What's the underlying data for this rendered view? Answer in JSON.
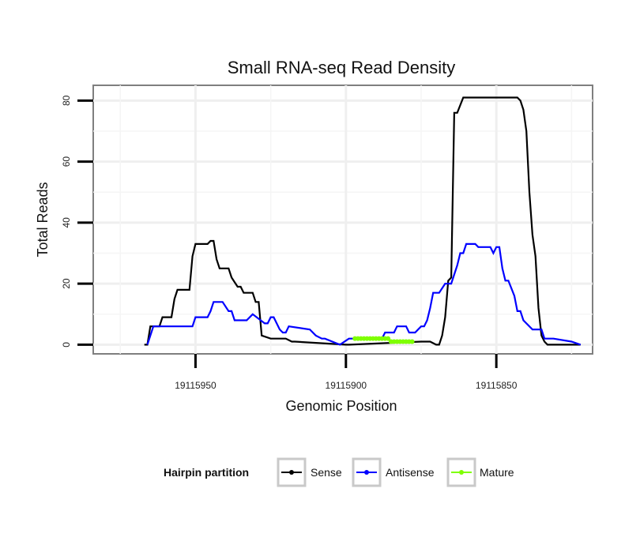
{
  "chart_data": {
    "type": "line",
    "title": "Small RNA-seq Read Density",
    "xlabel": "Genomic Position",
    "ylabel": "Total Reads",
    "xlim": [
      19115984,
      19115818
    ],
    "ylim": [
      -3,
      85
    ],
    "x_reversed": true,
    "grid": true,
    "legend_position": "bottom",
    "legend_title": "Hairpin partition",
    "x_ticks": [
      19115950,
      19115900,
      19115850
    ],
    "x_tick_labels": [
      "19115950",
      "19115900",
      "19115850"
    ],
    "y_ticks": [
      0,
      20,
      40,
      60,
      80
    ],
    "y_tick_labels": [
      "0",
      "20",
      "40",
      "60",
      "80"
    ],
    "series": [
      {
        "name": "Sense",
        "color": "#000000",
        "x": [
          19115967,
          19115966,
          19115965,
          19115964,
          19115962,
          19115961,
          19115959,
          19115958,
          19115957,
          19115956,
          19115955,
          19115952,
          19115951,
          19115950,
          19115949,
          19115948,
          19115946,
          19115945,
          19115944,
          19115943,
          19115942,
          19115941,
          19115940,
          19115939,
          19115938,
          19115936,
          19115935,
          19115934,
          19115933,
          19115932,
          19115931,
          19115930,
          19115929,
          19115928,
          19115925,
          19115924,
          19115920,
          19115918,
          19115917,
          19115900,
          19115899,
          19115875,
          19115872,
          19115870,
          19115869,
          19115868,
          19115867,
          19115866,
          19115865,
          19115864,
          19115863,
          19115861,
          19115860,
          19115859,
          19115858,
          19115857,
          19115856,
          19115855,
          19115853,
          19115851,
          19115849,
          19115847,
          19115845,
          19115843,
          19115842,
          19115841,
          19115840,
          19115839,
          19115838,
          19115837,
          19115836,
          19115835,
          19115834,
          19115833,
          19115831,
          19115830,
          19115827,
          19115822
        ],
        "y": [
          0,
          0,
          6,
          6,
          6,
          9,
          9,
          9,
          15,
          18,
          18,
          18,
          29,
          33,
          33,
          33,
          33,
          34,
          34,
          28,
          25,
          25,
          25,
          25,
          22,
          19,
          19,
          17,
          17,
          17,
          17,
          14,
          14,
          3,
          2,
          2,
          2,
          1,
          1,
          0,
          0,
          1,
          1,
          0,
          0,
          3,
          9,
          21,
          22,
          76,
          76,
          81,
          81,
          81,
          81,
          81,
          81,
          81,
          81,
          81,
          81,
          81,
          81,
          81,
          80,
          77,
          70,
          50,
          36,
          29,
          12,
          3,
          1,
          0,
          0,
          0,
          0,
          0
        ]
      },
      {
        "name": "Antisense",
        "color": "#0000ff",
        "x": [
          19115966,
          19115964,
          19115956,
          19115955,
          19115951,
          19115950,
          19115949,
          19115948,
          19115946,
          19115945,
          19115944,
          19115941,
          19115939,
          19115938,
          19115937,
          19115936,
          19115935,
          19115934,
          19115933,
          19115931,
          19115927,
          19115926,
          19115925,
          19115924,
          19115923,
          19115922,
          19115921,
          19115920,
          19115919,
          19115912,
          19115910,
          19115908,
          19115907,
          19115902,
          19115899,
          19115888,
          19115887,
          19115884,
          19115883,
          19115880,
          19115879,
          19115877,
          19115875,
          19115874,
          19115873,
          19115872,
          19115871,
          19115870,
          19115869,
          19115867,
          19115865,
          19115864,
          19115863,
          19115862,
          19115861,
          19115860,
          19115857,
          19115856,
          19115855,
          19115852,
          19115851,
          19115850,
          19115849,
          19115848,
          19115847,
          19115846,
          19115844,
          19115843,
          19115842,
          19115841,
          19115838,
          19115835,
          19115834,
          19115833,
          19115831,
          19115825,
          19115822
        ],
        "y": [
          0,
          6,
          6,
          6,
          6,
          9,
          9,
          9,
          9,
          11,
          14,
          14,
          11,
          11,
          8,
          8,
          8,
          8,
          8,
          10,
          7,
          7,
          9,
          9,
          7,
          5,
          4,
          4,
          6,
          5,
          3,
          2,
          2,
          0,
          2,
          2,
          4,
          4,
          6,
          6,
          4,
          4,
          6,
          6,
          8,
          12,
          17,
          17,
          17,
          20,
          20,
          23,
          26,
          30,
          30,
          33,
          33,
          32,
          32,
          32,
          30,
          32,
          32,
          25,
          21,
          21,
          16,
          11,
          11,
          8,
          5,
          5,
          2,
          2,
          2,
          1,
          0
        ]
      },
      {
        "name": "Mature",
        "color": "#7fff00",
        "x": [
          19115897,
          19115896,
          19115895,
          19115894,
          19115893,
          19115892,
          19115891,
          19115890,
          19115889,
          19115888,
          19115887,
          19115886,
          19115885,
          19115884,
          19115883,
          19115882,
          19115881,
          19115880,
          19115879,
          19115878
        ],
        "y": [
          2,
          2,
          2,
          2,
          2,
          2,
          2,
          2,
          2,
          2,
          2,
          2,
          1,
          1,
          1,
          1,
          1,
          1,
          1,
          1
        ]
      }
    ]
  }
}
